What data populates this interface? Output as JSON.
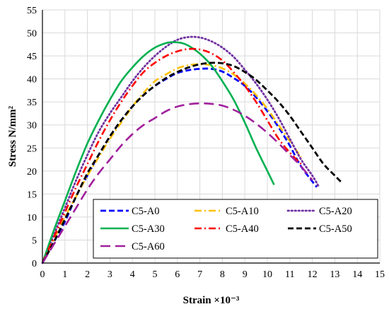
{
  "chart_data": {
    "type": "line",
    "xlabel": "Strain ×10⁻³",
    "ylabel": "Stress N/mm²",
    "xlim": [
      0,
      15
    ],
    "ylim": [
      0,
      55
    ],
    "xticks": [
      0,
      1,
      2,
      3,
      4,
      5,
      6,
      7,
      8,
      9,
      10,
      11,
      12,
      13,
      14,
      15
    ],
    "yticks": [
      0,
      5,
      10,
      15,
      20,
      25,
      30,
      35,
      40,
      45,
      50,
      55
    ],
    "grid": true,
    "legend_position": "bottom-center",
    "series": [
      {
        "name": "C5-A0",
        "color": "#0000ff",
        "dash": "dashed",
        "x": [
          0,
          0.5,
          1,
          1.5,
          2,
          2.5,
          3,
          3.5,
          4,
          4.5,
          5,
          5.5,
          6,
          6.5,
          7,
          7.5,
          8,
          8.5,
          9,
          9.5,
          10,
          10.5,
          11,
          11.5,
          12.2
        ],
        "y": [
          0,
          4.5,
          9,
          14.5,
          19,
          23.5,
          27.5,
          31,
          34,
          36.5,
          38.5,
          40,
          41.3,
          41.9,
          42.2,
          42.2,
          41.6,
          40.2,
          38.5,
          36,
          33,
          29.5,
          25.5,
          21,
          16.5
        ]
      },
      {
        "name": "C5-A10",
        "color": "#ffc000",
        "dash": "dashdot",
        "x": [
          0,
          0.5,
          1,
          1.5,
          2,
          2.5,
          3,
          3.5,
          4,
          4.5,
          5,
          5.5,
          6,
          6.5,
          7,
          7.5,
          8,
          8.5,
          9,
          9.5,
          10,
          10.5,
          11,
          11.5
        ],
        "y": [
          0,
          5,
          10,
          14.5,
          19,
          23,
          27,
          30.5,
          34,
          37,
          39.5,
          41,
          42.3,
          43,
          43.2,
          43,
          42.3,
          41,
          39,
          36.5,
          33.5,
          30,
          26.5,
          23
        ]
      },
      {
        "name": "C5-A20",
        "color": "#7030a0",
        "dash": "dotted",
        "x": [
          0,
          0.5,
          1,
          1.5,
          2,
          2.5,
          3,
          3.5,
          4,
          4.5,
          5,
          5.5,
          6,
          6.5,
          7,
          7.5,
          8,
          8.5,
          9,
          9.5,
          10,
          10.5,
          11,
          11.5,
          12,
          12.3
        ],
        "y": [
          0,
          6,
          12,
          18,
          23.5,
          28.5,
          32.5,
          36,
          39.5,
          42.5,
          45,
          47,
          48.5,
          49.1,
          49,
          48.2,
          46.8,
          44.8,
          42,
          39,
          35.5,
          31.5,
          27,
          22.5,
          19,
          16.5
        ]
      },
      {
        "name": "C5-A30",
        "color": "#00b050",
        "dash": "solid",
        "x": [
          0,
          0.5,
          1,
          1.5,
          2,
          2.5,
          3,
          3.5,
          4,
          4.5,
          5,
          5.5,
          5.8,
          6.2,
          6.5,
          7,
          7.5,
          8,
          8.5,
          9,
          9.5,
          10,
          10.3
        ],
        "y": [
          0,
          7,
          13.5,
          20,
          26,
          31,
          35.5,
          39.5,
          42.5,
          45,
          46.8,
          47.8,
          48,
          47.8,
          47.2,
          45.5,
          43,
          39.5,
          35.5,
          30.5,
          25,
          20,
          17
        ]
      },
      {
        "name": "C5-A40",
        "color": "#ff0000",
        "dash": "dashdot",
        "x": [
          0,
          0.5,
          1,
          1.5,
          2,
          2.5,
          3,
          3.5,
          4,
          4.5,
          5,
          5.5,
          6,
          6.5,
          7,
          7.5,
          8,
          8.5,
          9,
          9.5,
          10,
          10.5,
          11,
          11.5
        ],
        "y": [
          0,
          5.5,
          11,
          16.5,
          21.5,
          26.5,
          31,
          35,
          38.5,
          41.5,
          43.5,
          45,
          46,
          46.5,
          46.4,
          45.6,
          44,
          41.5,
          38.5,
          35,
          31,
          27,
          24,
          21.5
        ]
      },
      {
        "name": "C5-A50",
        "color": "#000000",
        "dash": "dashed",
        "x": [
          0,
          0.5,
          1,
          1.5,
          2,
          2.5,
          3,
          3.5,
          4,
          4.5,
          5,
          5.5,
          6,
          6.5,
          7,
          7.5,
          8,
          8.5,
          9,
          9.5,
          10,
          10.5,
          11,
          11.5,
          12,
          12.5,
          13,
          13.3
        ],
        "y": [
          0,
          4.5,
          9.5,
          14.5,
          19.5,
          23.5,
          27.5,
          31,
          34,
          36.5,
          38.5,
          40.2,
          41.5,
          42.5,
          43.2,
          43.5,
          43.4,
          42.8,
          41.5,
          39.8,
          37.5,
          35,
          32,
          28.5,
          25,
          21.5,
          19,
          17.5
        ]
      },
      {
        "name": "C5-A60",
        "color": "#a0209c",
        "dash": "longdash",
        "x": [
          0,
          0.5,
          1,
          1.5,
          2,
          2.5,
          3,
          3.5,
          4,
          4.5,
          5,
          5.5,
          6,
          6.5,
          7,
          7.5,
          8,
          8.5,
          9,
          9.5,
          10,
          10.5,
          11,
          11.5,
          12
        ],
        "y": [
          0,
          4,
          8,
          12,
          16,
          19.5,
          22.5,
          25.5,
          28,
          30,
          31.5,
          33,
          34,
          34.5,
          34.7,
          34.6,
          34.2,
          33.3,
          32,
          30.3,
          28.3,
          26,
          23.5,
          21,
          18
        ]
      }
    ]
  }
}
